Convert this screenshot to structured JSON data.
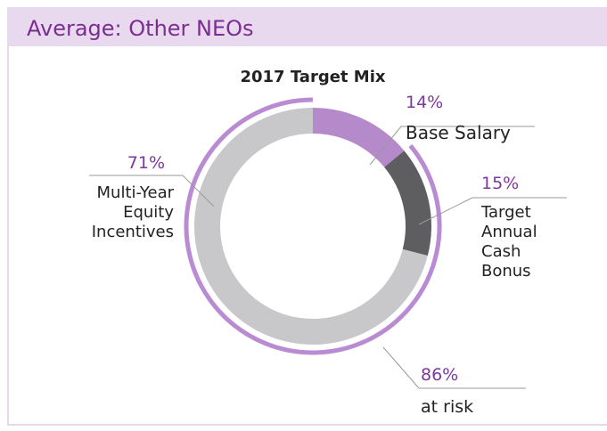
{
  "header": {
    "title": "Average: Other NEOs"
  },
  "chart_data": {
    "type": "donut",
    "title": "2017 Target Mix",
    "categories": [
      "Base Salary",
      "Target Annual Cash Bonus",
      "Multi-Year Equity Incentives"
    ],
    "values": [
      14,
      15,
      71
    ],
    "value_labels": [
      "14%",
      "15%",
      "71%"
    ],
    "colors": [
      "#b48acb",
      "#5e5e61",
      "#c8c8ca"
    ],
    "at_risk": {
      "value": 86,
      "value_label": "86%",
      "label": "at risk",
      "color": "#b98bd2"
    }
  }
}
